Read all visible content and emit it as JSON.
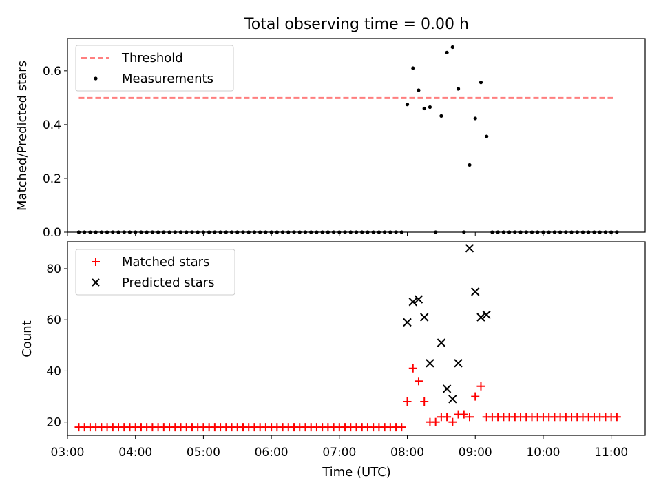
{
  "chart_data": [
    {
      "type": "scatter",
      "title": "Total observing time = 0.00 h",
      "xlabel": "",
      "ylabel": "Matched/Predicted stars",
      "xlim": [
        "03:00",
        "11:30"
      ],
      "ylim": [
        0,
        0.72
      ],
      "yticks": [
        0.0,
        0.2,
        0.4,
        0.6
      ],
      "ytick_labels": [
        "0.0",
        "0.2",
        "0.4",
        "0.6"
      ],
      "grid": false,
      "legend_position": "top-left",
      "threshold": {
        "name": "Threshold",
        "y": 0.5,
        "x_range": [
          "03:10",
          "11:02"
        ],
        "color": "#ff7f7f",
        "style": "dashed"
      },
      "series": [
        {
          "name": "Measurements",
          "color": "#000000",
          "marker": "dot",
          "x": [
            "03:10",
            "03:15",
            "03:20",
            "03:25",
            "03:30",
            "03:35",
            "03:40",
            "03:45",
            "03:50",
            "03:55",
            "04:00",
            "04:05",
            "04:10",
            "04:15",
            "04:20",
            "04:25",
            "04:30",
            "04:35",
            "04:40",
            "04:45",
            "04:50",
            "04:55",
            "05:00",
            "05:05",
            "05:10",
            "05:15",
            "05:20",
            "05:25",
            "05:30",
            "05:35",
            "05:40",
            "05:45",
            "05:50",
            "05:55",
            "06:00",
            "06:05",
            "06:10",
            "06:15",
            "06:20",
            "06:25",
            "06:30",
            "06:35",
            "06:40",
            "06:45",
            "06:50",
            "06:55",
            "07:00",
            "07:05",
            "07:10",
            "07:15",
            "07:20",
            "07:25",
            "07:30",
            "07:35",
            "07:40",
            "07:45",
            "07:50",
            "07:55",
            "08:00",
            "08:05",
            "08:10",
            "08:15",
            "08:20",
            "08:25",
            "08:30",
            "08:35",
            "08:40",
            "08:45",
            "08:50",
            "08:55",
            "09:00",
            "09:05",
            "09:10",
            "09:15",
            "09:20",
            "09:25",
            "09:30",
            "09:35",
            "09:40",
            "09:45",
            "09:50",
            "09:55",
            "10:00",
            "10:05",
            "10:10",
            "10:15",
            "10:20",
            "10:25",
            "10:30",
            "10:35",
            "10:40",
            "10:45",
            "10:50",
            "10:55",
            "11:00",
            "11:05"
          ],
          "y": [
            0,
            0,
            0,
            0,
            0,
            0,
            0,
            0,
            0,
            0,
            0,
            0,
            0,
            0,
            0,
            0,
            0,
            0,
            0,
            0,
            0,
            0,
            0,
            0,
            0,
            0,
            0,
            0,
            0,
            0,
            0,
            0,
            0,
            0,
            0,
            0,
            0,
            0,
            0,
            0,
            0,
            0,
            0,
            0,
            0,
            0,
            0,
            0,
            0,
            0,
            0,
            0,
            0,
            0,
            0,
            0,
            0,
            0,
            0.475,
            0.61,
            0.528,
            0.46,
            0.465,
            0,
            0.432,
            0.668,
            0.688,
            0.533,
            0,
            0.25,
            0.423,
            0.557,
            0.356,
            0,
            0,
            0,
            0,
            0,
            0,
            0,
            0,
            0,
            0,
            0,
            0,
            0,
            0,
            0,
            0,
            0,
            0,
            0,
            0,
            0,
            0,
            0
          ]
        }
      ]
    },
    {
      "type": "scatter",
      "title": "",
      "xlabel": "Time (UTC)",
      "ylabel": "Count",
      "xlim": [
        "03:00",
        "11:30"
      ],
      "ylim": [
        14.8,
        90.5
      ],
      "yticks": [
        20,
        40,
        60,
        80
      ],
      "ytick_labels": [
        "20",
        "40",
        "60",
        "80"
      ],
      "xticks": [
        "03:00",
        "04:00",
        "05:00",
        "06:00",
        "07:00",
        "08:00",
        "09:00",
        "10:00",
        "11:00"
      ],
      "grid": false,
      "legend_position": "top-left",
      "series": [
        {
          "name": "Matched stars",
          "color": "#ff0000",
          "marker": "plus",
          "x": [
            "03:10",
            "03:15",
            "03:20",
            "03:25",
            "03:30",
            "03:35",
            "03:40",
            "03:45",
            "03:50",
            "03:55",
            "04:00",
            "04:05",
            "04:10",
            "04:15",
            "04:20",
            "04:25",
            "04:30",
            "04:35",
            "04:40",
            "04:45",
            "04:50",
            "04:55",
            "05:00",
            "05:05",
            "05:10",
            "05:15",
            "05:20",
            "05:25",
            "05:30",
            "05:35",
            "05:40",
            "05:45",
            "05:50",
            "05:55",
            "06:00",
            "06:05",
            "06:10",
            "06:15",
            "06:20",
            "06:25",
            "06:30",
            "06:35",
            "06:40",
            "06:45",
            "06:50",
            "06:55",
            "07:00",
            "07:05",
            "07:10",
            "07:15",
            "07:20",
            "07:25",
            "07:30",
            "07:35",
            "07:40",
            "07:45",
            "07:50",
            "07:55",
            "08:00",
            "08:05",
            "08:10",
            "08:15",
            "08:20",
            "08:25",
            "08:30",
            "08:35",
            "08:40",
            "08:45",
            "08:50",
            "08:55",
            "09:00",
            "09:05",
            "09:10",
            "09:15",
            "09:20",
            "09:25",
            "09:30",
            "09:35",
            "09:40",
            "09:45",
            "09:50",
            "09:55",
            "10:00",
            "10:05",
            "10:10",
            "10:15",
            "10:20",
            "10:25",
            "10:30",
            "10:35",
            "10:40",
            "10:45",
            "10:50",
            "10:55",
            "11:00",
            "11:05"
          ],
          "y": [
            18,
            18,
            18,
            18,
            18,
            18,
            18,
            18,
            18,
            18,
            18,
            18,
            18,
            18,
            18,
            18,
            18,
            18,
            18,
            18,
            18,
            18,
            18,
            18,
            18,
            18,
            18,
            18,
            18,
            18,
            18,
            18,
            18,
            18,
            18,
            18,
            18,
            18,
            18,
            18,
            18,
            18,
            18,
            18,
            18,
            18,
            18,
            18,
            18,
            18,
            18,
            18,
            18,
            18,
            18,
            18,
            18,
            18,
            28,
            41,
            36,
            28,
            20,
            20,
            22,
            22,
            20,
            23,
            23,
            22,
            30,
            34,
            22,
            22,
            22,
            22,
            22,
            22,
            22,
            22,
            22,
            22,
            22,
            22,
            22,
            22,
            22,
            22,
            22,
            22,
            22,
            22,
            22,
            22,
            22,
            22
          ]
        },
        {
          "name": "Predicted stars",
          "color": "#000000",
          "marker": "x",
          "x": [
            "08:00",
            "08:05",
            "08:10",
            "08:15",
            "08:20",
            "08:30",
            "08:35",
            "08:40",
            "08:45",
            "08:55",
            "09:00",
            "09:05",
            "09:10"
          ],
          "y": [
            59,
            67,
            68,
            61,
            43,
            51,
            33,
            29,
            43,
            88,
            71,
            61,
            62
          ]
        }
      ]
    }
  ]
}
